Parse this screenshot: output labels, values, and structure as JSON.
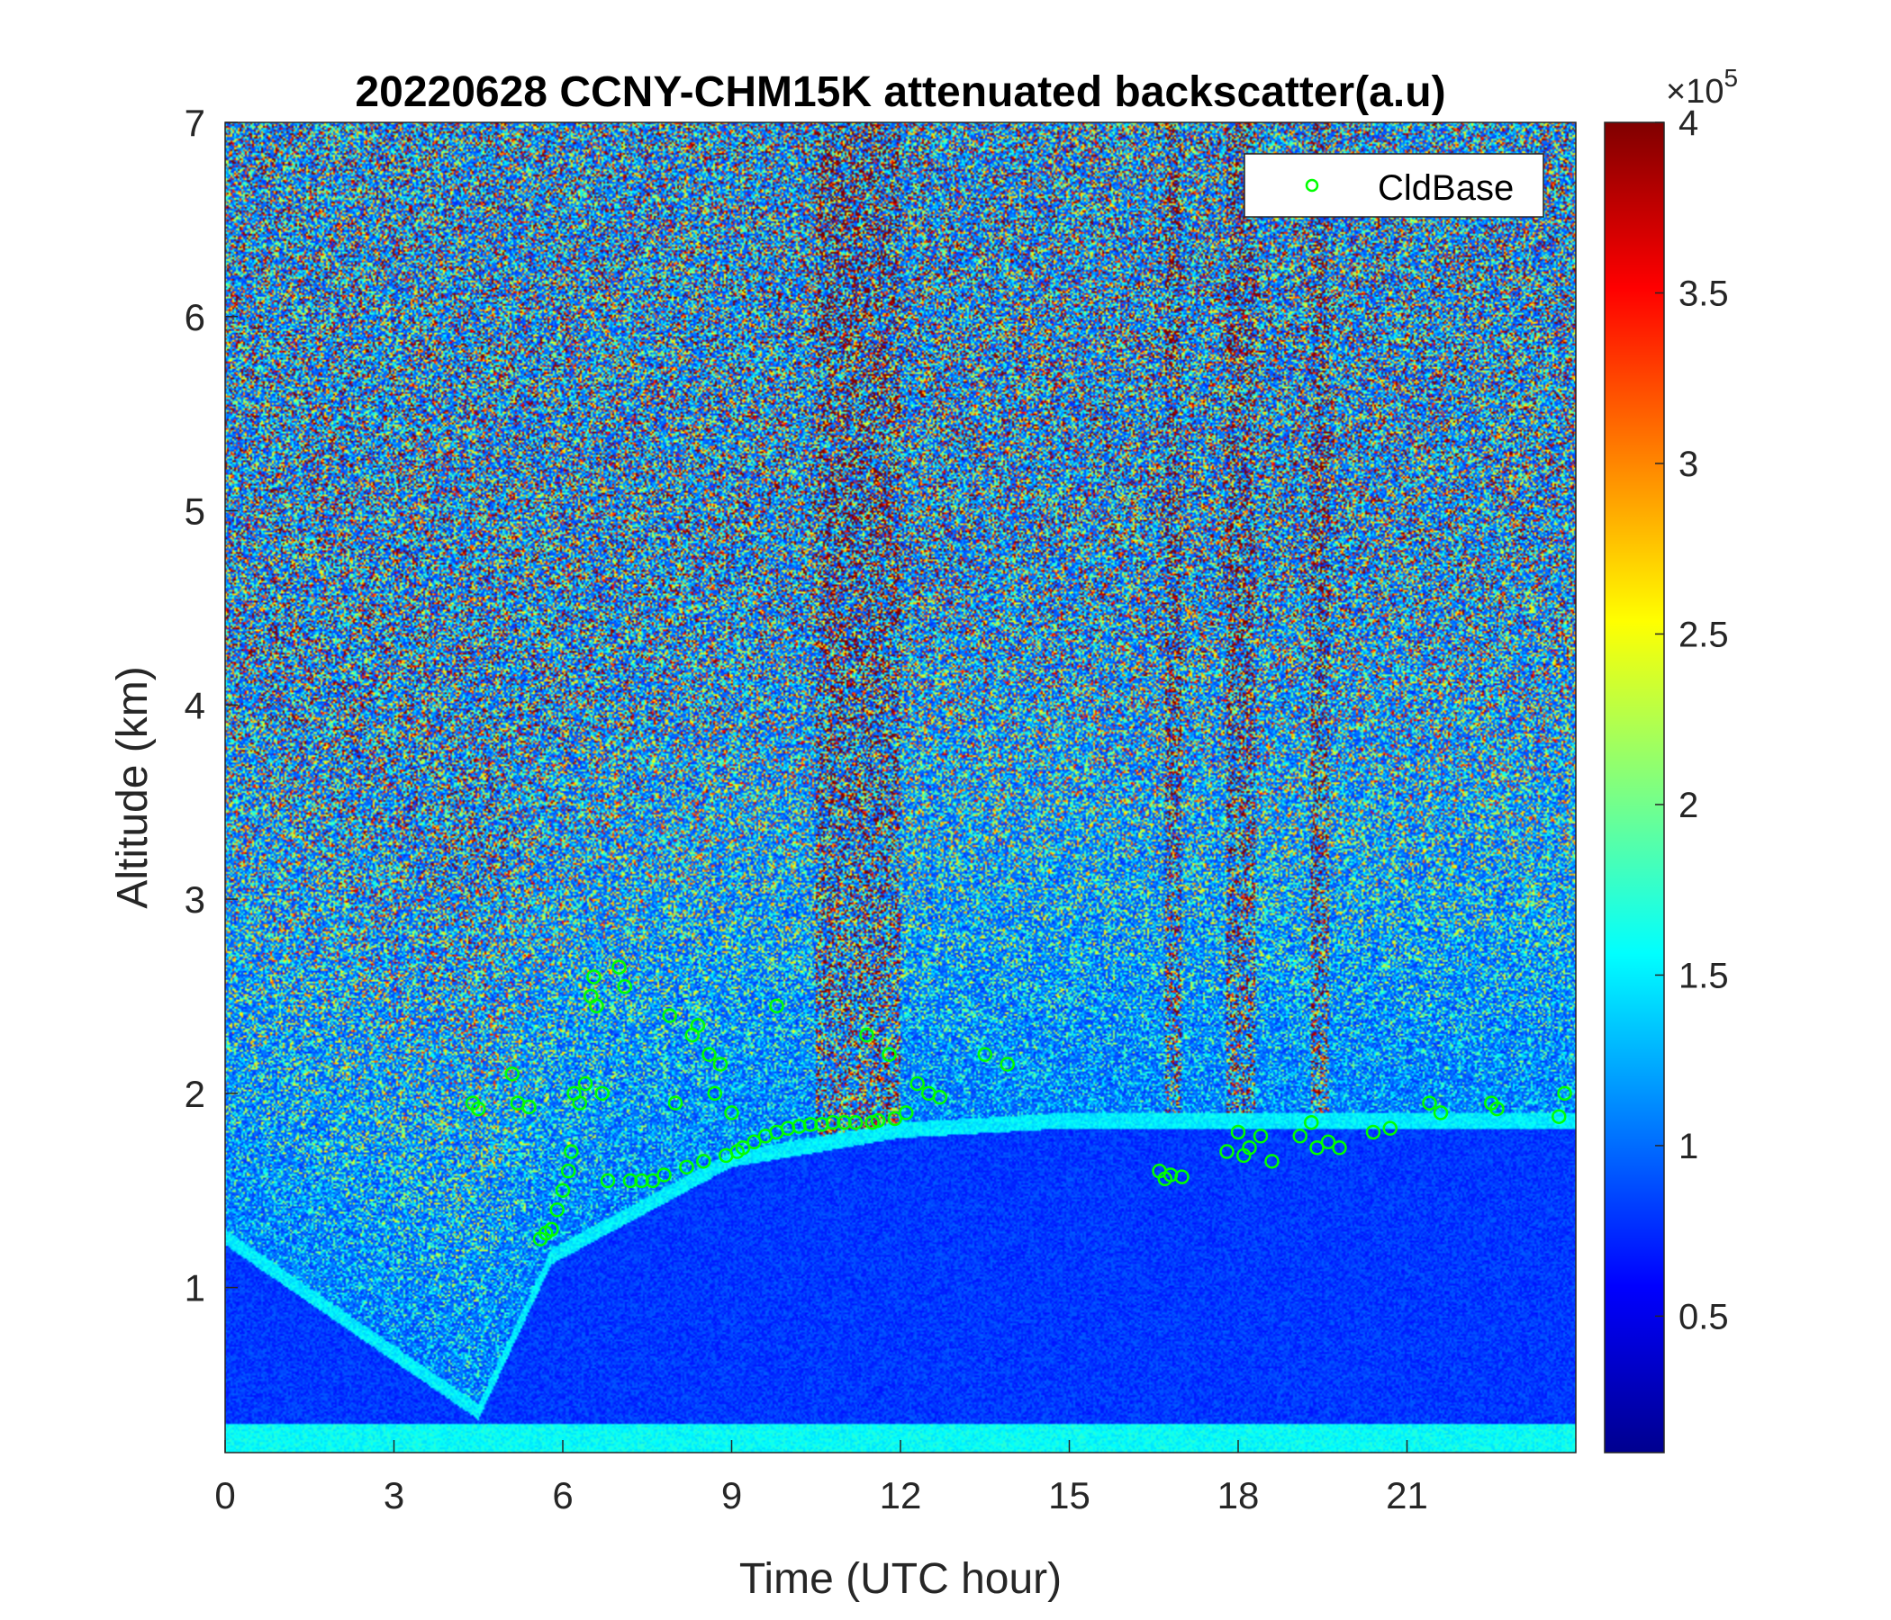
{
  "chart_data": {
    "type": "heatmap",
    "title": "20220628 CCNY-CHM15K attenuated backscatter(a.u)",
    "xlabel": "Time (UTC hour)",
    "ylabel": "Altitude (km)",
    "xlim": [
      0,
      24
    ],
    "ylim": [
      0.15,
      7
    ],
    "xticks": [
      0,
      3,
      6,
      9,
      12,
      15,
      18,
      21
    ],
    "yticks": [
      1,
      2,
      3,
      4,
      5,
      6,
      7
    ],
    "colorbar": {
      "colormap": "jet",
      "range": [
        0.1,
        4
      ],
      "ticks": [
        0.5,
        1,
        1.5,
        2,
        2.5,
        3,
        3.5,
        4
      ],
      "exponent_label": "×10",
      "exponent_power": "5"
    },
    "legend": {
      "position": "top-right",
      "entries": [
        "CldBase"
      ]
    },
    "heatmap_features": {
      "background_level_clear_air": 0.3,
      "boundary_layer_top_km": [
        [
          0,
          1.3
        ],
        [
          4.5,
          0.4
        ],
        [
          5.8,
          1.2
        ],
        [
          9,
          1.7
        ],
        [
          12,
          1.85
        ],
        [
          15,
          1.9
        ],
        [
          24,
          1.9
        ]
      ],
      "noisy_columns_hours": [
        [
          10.5,
          12.0
        ],
        [
          16.7,
          17.0
        ],
        [
          17.8,
          18.3
        ],
        [
          19.3,
          19.6
        ]
      ]
    },
    "series": [
      {
        "name": "CldBase",
        "marker": "open-circle",
        "color": "#00ff00",
        "points": [
          [
            4.4,
            1.95
          ],
          [
            4.5,
            1.92
          ],
          [
            5.1,
            2.1
          ],
          [
            5.2,
            1.95
          ],
          [
            5.4,
            1.93
          ],
          [
            5.6,
            1.25
          ],
          [
            5.7,
            1.28
          ],
          [
            5.8,
            1.3
          ],
          [
            5.9,
            1.4
          ],
          [
            6.0,
            1.5
          ],
          [
            6.1,
            1.6
          ],
          [
            6.15,
            1.7
          ],
          [
            6.2,
            2.0
          ],
          [
            6.3,
            1.95
          ],
          [
            6.4,
            2.05
          ],
          [
            6.5,
            2.5
          ],
          [
            6.55,
            2.6
          ],
          [
            6.6,
            2.45
          ],
          [
            6.7,
            2.0
          ],
          [
            6.8,
            1.55
          ],
          [
            7.0,
            2.65
          ],
          [
            7.1,
            2.55
          ],
          [
            7.2,
            1.55
          ],
          [
            7.4,
            1.55
          ],
          [
            7.6,
            1.55
          ],
          [
            7.8,
            1.58
          ],
          [
            7.9,
            2.4
          ],
          [
            8.0,
            1.95
          ],
          [
            8.2,
            1.62
          ],
          [
            8.3,
            2.3
          ],
          [
            8.4,
            2.35
          ],
          [
            8.5,
            1.65
          ],
          [
            8.6,
            2.2
          ],
          [
            8.7,
            2.0
          ],
          [
            8.8,
            2.15
          ],
          [
            8.9,
            1.68
          ],
          [
            9.0,
            1.9
          ],
          [
            9.1,
            1.7
          ],
          [
            9.2,
            1.72
          ],
          [
            9.4,
            1.75
          ],
          [
            9.6,
            1.78
          ],
          [
            9.8,
            2.45
          ],
          [
            9.8,
            1.8
          ],
          [
            10.0,
            1.82
          ],
          [
            10.2,
            1.83
          ],
          [
            10.4,
            1.84
          ],
          [
            10.6,
            1.84
          ],
          [
            10.8,
            1.85
          ],
          [
            11.0,
            1.85
          ],
          [
            11.2,
            1.85
          ],
          [
            11.4,
            2.3
          ],
          [
            11.5,
            1.85
          ],
          [
            11.6,
            1.86
          ],
          [
            11.8,
            2.2
          ],
          [
            11.9,
            1.87
          ],
          [
            12.1,
            1.9
          ],
          [
            12.3,
            2.05
          ],
          [
            12.5,
            2.0
          ],
          [
            12.7,
            1.98
          ],
          [
            13.5,
            2.2
          ],
          [
            13.9,
            2.15
          ],
          [
            16.6,
            1.6
          ],
          [
            16.7,
            1.56
          ],
          [
            16.8,
            1.58
          ],
          [
            17.0,
            1.57
          ],
          [
            17.8,
            1.7
          ],
          [
            18.0,
            1.8
          ],
          [
            18.1,
            1.68
          ],
          [
            18.2,
            1.72
          ],
          [
            18.4,
            1.78
          ],
          [
            18.6,
            1.65
          ],
          [
            19.1,
            1.78
          ],
          [
            19.3,
            1.85
          ],
          [
            19.4,
            1.72
          ],
          [
            19.6,
            1.75
          ],
          [
            19.8,
            1.72
          ],
          [
            20.4,
            1.8
          ],
          [
            20.7,
            1.82
          ],
          [
            21.4,
            1.95
          ],
          [
            21.6,
            1.9
          ],
          [
            22.5,
            1.95
          ],
          [
            22.6,
            1.92
          ],
          [
            23.7,
            1.88
          ],
          [
            23.8,
            2.0
          ]
        ]
      }
    ]
  }
}
